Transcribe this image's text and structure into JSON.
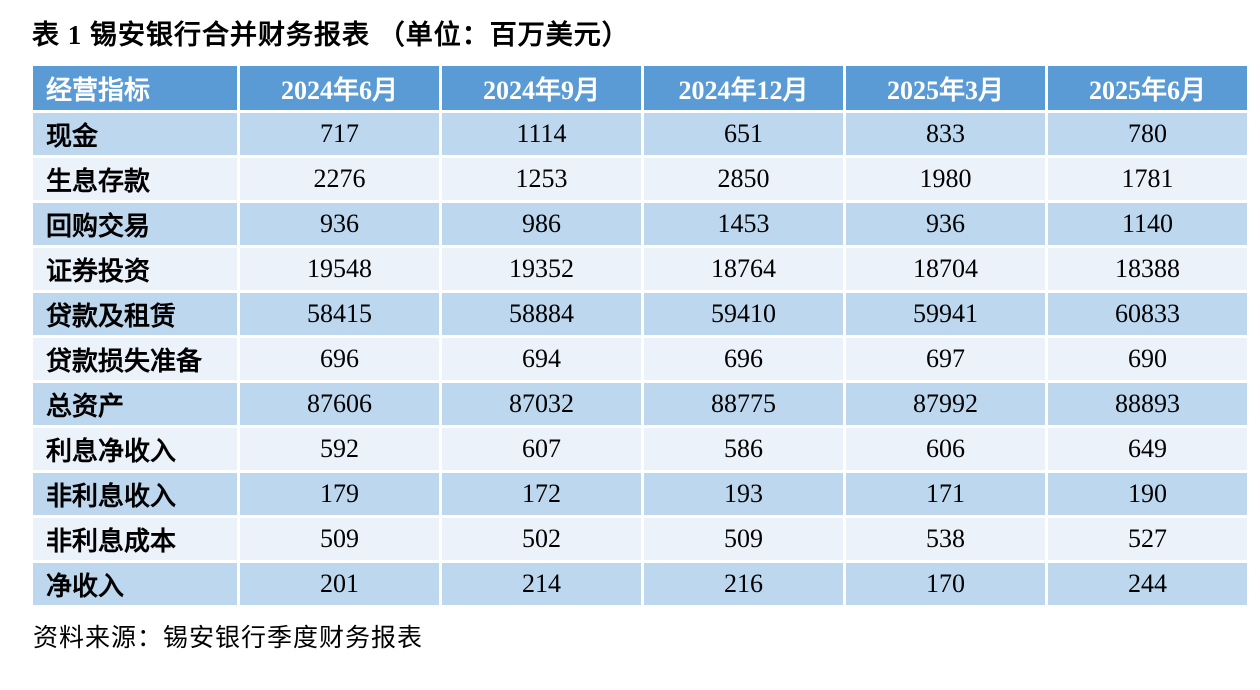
{
  "title": "表 1 锡安银行合并财务报表 （单位：百万美元）",
  "source": "资料来源：锡安银行季度财务报表",
  "colors": {
    "header_bg": "#5B9BD5",
    "band_dark": "#BDD7EE",
    "band_light": "#EBF2FA",
    "header_text": "#FFFFFF",
    "body_text": "#000000"
  },
  "table": {
    "columns": [
      "经营指标",
      "2024年6月",
      "2024年9月",
      "2024年12月",
      "2025年3月",
      "2025年6月"
    ],
    "rows": [
      {
        "label": "现金",
        "values": [
          "717",
          "1114",
          "651",
          "833",
          "780"
        ]
      },
      {
        "label": "生息存款",
        "values": [
          "2276",
          "1253",
          "2850",
          "1980",
          "1781"
        ]
      },
      {
        "label": "回购交易",
        "values": [
          "936",
          "986",
          "1453",
          "936",
          "1140"
        ]
      },
      {
        "label": "证券投资",
        "values": [
          "19548",
          "19352",
          "18764",
          "18704",
          "18388"
        ]
      },
      {
        "label": "贷款及租赁",
        "values": [
          "58415",
          "58884",
          "59410",
          "59941",
          "60833"
        ]
      },
      {
        "label": "贷款损失准备",
        "values": [
          "696",
          "694",
          "696",
          "697",
          "690"
        ]
      },
      {
        "label": "总资产",
        "values": [
          "87606",
          "87032",
          "88775",
          "87992",
          "88893"
        ]
      },
      {
        "label": "利息净收入",
        "values": [
          "592",
          "607",
          "586",
          "606",
          "649"
        ]
      },
      {
        "label": "非利息收入",
        "values": [
          "179",
          "172",
          "193",
          "171",
          "190"
        ]
      },
      {
        "label": "非利息成本",
        "values": [
          "509",
          "502",
          "509",
          "538",
          "527"
        ]
      },
      {
        "label": "净收入",
        "values": [
          "201",
          "214",
          "216",
          "170",
          "244"
        ]
      }
    ]
  }
}
